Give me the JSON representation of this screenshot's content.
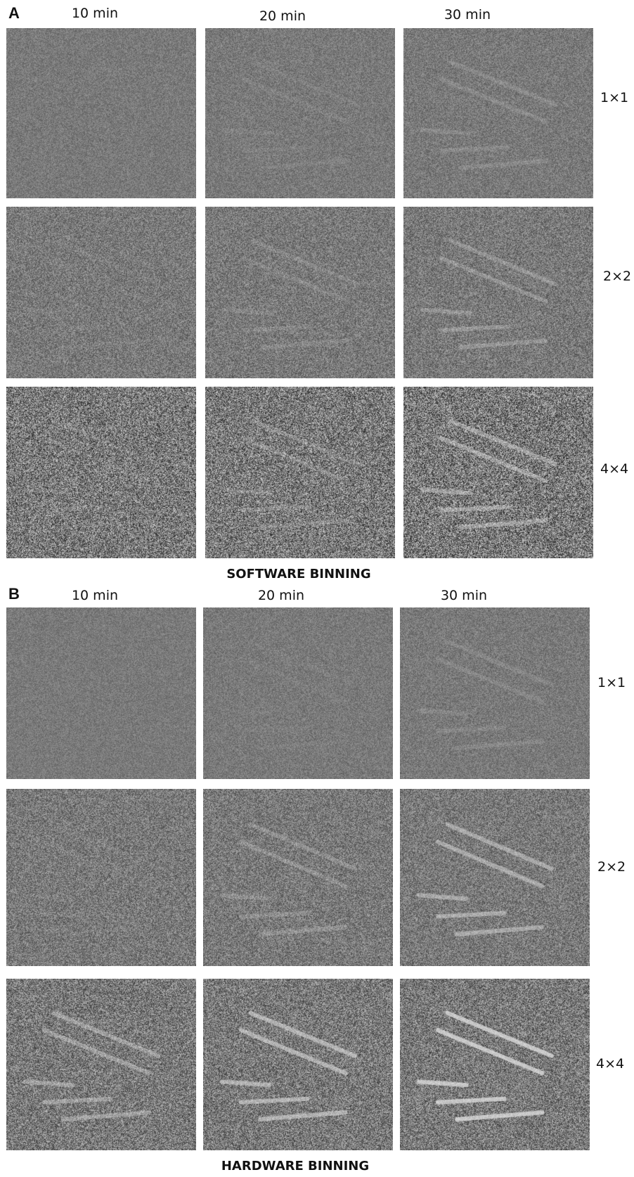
{
  "panel_a": {
    "letter": "A",
    "columns": [
      "10 min",
      "20 min",
      "30 min"
    ],
    "rows": [
      "1×1",
      "2×2",
      "4×4"
    ],
    "footer": "SOFTWARE BINNING"
  },
  "panel_b": {
    "letter": "B",
    "columns": [
      "10 min",
      "20 min",
      "30 min"
    ],
    "rows": [
      "1×1",
      "2×2",
      "4×4"
    ],
    "footer": "HARDWARE BINNING"
  }
}
